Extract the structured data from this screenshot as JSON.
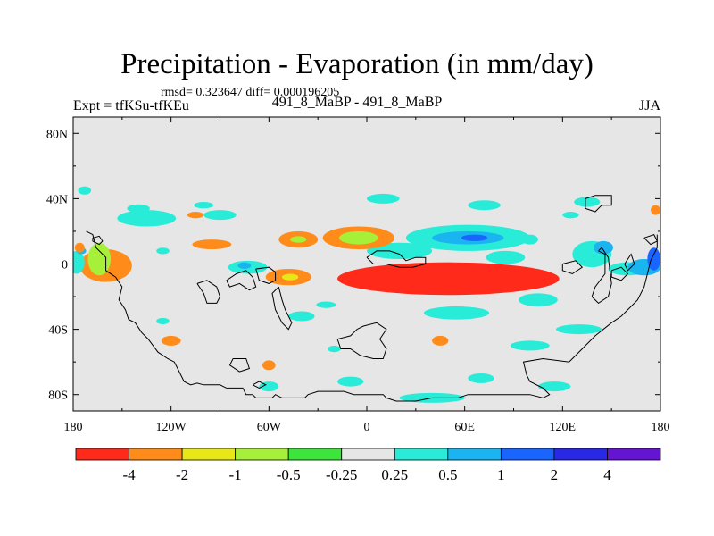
{
  "chart_data": {
    "type": "contour-map",
    "title": "Precipitation - Evaporation (in mm/day)",
    "stats_text": "rmsd= 0.323647  diff= 0.000196205",
    "left_string": "Expt = tfKSu-tfKEu",
    "center_string": "491_8_MaBP - 491_8_MaBP",
    "right_string": "JJA",
    "xlim": [
      -180,
      180
    ],
    "ylim": [
      -90,
      90
    ],
    "x_ticks": [
      {
        "value": -180,
        "label": "180"
      },
      {
        "value": -120,
        "label": "120W"
      },
      {
        "value": -60,
        "label": "60W"
      },
      {
        "value": 0,
        "label": "0"
      },
      {
        "value": 60,
        "label": "60E"
      },
      {
        "value": 120,
        "label": "120E"
      },
      {
        "value": 180,
        "label": "180"
      }
    ],
    "y_ticks": [
      {
        "value": 80,
        "label": "80N"
      },
      {
        "value": 40,
        "label": "40N"
      },
      {
        "value": 0,
        "label": "0"
      },
      {
        "value": -40,
        "label": "40S"
      },
      {
        "value": -80,
        "label": "80S"
      }
    ],
    "colorbar": {
      "colors": [
        "#ff2a1a",
        "#ff8c1a",
        "#e8e818",
        "#a6f03a",
        "#3ce43c",
        "#e6e6e6",
        "#28ebd8",
        "#1ab4f0",
        "#1a64ff",
        "#2828e6",
        "#6414d2"
      ],
      "labels": [
        "-4",
        "-2",
        "-1",
        "-0.5",
        "-0.25",
        "0.25",
        "0.5",
        "1",
        "2",
        "4"
      ]
    },
    "blobs": [
      {
        "lon": 44,
        "lat": -8,
        "rlon": 48,
        "rlat": 7,
        "level": 1
      },
      {
        "lon": 48,
        "lat": -8,
        "rlon": 32,
        "rlat": 5,
        "level": 2
      },
      {
        "lon": 52,
        "lat": -8,
        "rlon": 14,
        "rlat": 2.5,
        "level": 3
      },
      {
        "lon": 58,
        "lat": -8,
        "rlon": 10,
        "rlat": 1.5,
        "level": 4
      },
      {
        "lon": 50,
        "lat": -9,
        "rlon": 68,
        "rlat": 10,
        "level": 0
      },
      {
        "lon": 62,
        "lat": 16,
        "rlon": 38,
        "rlat": 8,
        "level": 6
      },
      {
        "lon": 62,
        "lat": 16,
        "rlon": 22,
        "rlat": 4,
        "level": 7
      },
      {
        "lon": 66,
        "lat": 16,
        "rlon": 8,
        "rlat": 2,
        "level": 8
      },
      {
        "lon": 20,
        "lat": 8,
        "rlon": 20,
        "rlat": 5,
        "level": 6
      },
      {
        "lon": -5,
        "lat": 16,
        "rlon": 22,
        "rlat": 7,
        "level": 1
      },
      {
        "lon": -5,
        "lat": 16,
        "rlon": 12,
        "rlat": 4,
        "level": 3
      },
      {
        "lon": -42,
        "lat": 15,
        "rlon": 12,
        "rlat": 5,
        "level": 1
      },
      {
        "lon": -42,
        "lat": 15,
        "rlon": 5,
        "rlat": 2,
        "level": 3
      },
      {
        "lon": -48,
        "lat": -8,
        "rlon": 14,
        "rlat": 5,
        "level": 1
      },
      {
        "lon": -47,
        "lat": -8,
        "rlon": 5,
        "rlat": 2,
        "level": 2
      },
      {
        "lon": -73,
        "lat": -2,
        "rlon": 12,
        "rlat": 4,
        "level": 6
      },
      {
        "lon": -75,
        "lat": -1,
        "rlon": 4,
        "rlat": 2,
        "level": 7
      },
      {
        "lon": -95,
        "lat": 12,
        "rlon": 12,
        "rlat": 3,
        "level": 1
      },
      {
        "lon": -135,
        "lat": 28,
        "rlon": 18,
        "rlat": 5,
        "level": 6
      },
      {
        "lon": -90,
        "lat": 30,
        "rlon": 10,
        "rlat": 3,
        "level": 6
      },
      {
        "lon": -160,
        "lat": -1,
        "rlon": 16,
        "rlat": 10,
        "level": 1
      },
      {
        "lon": -164,
        "lat": 3,
        "rlon": 7,
        "rlat": 10,
        "level": 3
      },
      {
        "lon": -178,
        "lat": 1,
        "rlon": 5,
        "rlat": 7,
        "level": 6
      },
      {
        "lon": -175,
        "lat": 8,
        "rlon": 3,
        "rlat": 2,
        "level": 7
      },
      {
        "lon": -173,
        "lat": 45,
        "rlon": 4,
        "rlat": 2.5,
        "level": 6
      },
      {
        "lon": -125,
        "lat": 8,
        "rlon": 4,
        "rlat": 2,
        "level": 6
      },
      {
        "lon": -105,
        "lat": 30,
        "rlon": 5,
        "rlat": 2,
        "level": 1
      },
      {
        "lon": 85,
        "lat": 4,
        "rlon": 12,
        "rlat": 4,
        "level": 6
      },
      {
        "lon": 138,
        "lat": 6,
        "rlon": 12,
        "rlat": 8,
        "level": 6
      },
      {
        "lon": 145,
        "lat": 10,
        "rlon": 6,
        "rlat": 4,
        "level": 7
      },
      {
        "lon": 160,
        "lat": -3,
        "rlon": 12,
        "rlat": 4,
        "level": 6
      },
      {
        "lon": 170,
        "lat": -2,
        "rlon": 10,
        "rlat": 5,
        "level": 7
      },
      {
        "lon": 176,
        "lat": 3,
        "rlon": 4,
        "rlat": 7,
        "level": 8
      },
      {
        "lon": 135,
        "lat": 38,
        "rlon": 8,
        "rlat": 3,
        "level": 6
      },
      {
        "lon": 125,
        "lat": 30,
        "rlon": 5,
        "rlat": 2,
        "level": 6
      },
      {
        "lon": 177,
        "lat": 33,
        "rlon": 3,
        "rlat": 3,
        "level": 1
      },
      {
        "lon": 100,
        "lat": 15,
        "rlon": 5,
        "rlat": 3,
        "level": 6
      },
      {
        "lon": 10,
        "lat": 40,
        "rlon": 10,
        "rlat": 3,
        "level": 6
      },
      {
        "lon": 72,
        "lat": 36,
        "rlon": 10,
        "rlat": 3,
        "level": 6
      },
      {
        "lon": -140,
        "lat": 34,
        "rlon": 7,
        "rlat": 2.5,
        "level": 6
      },
      {
        "lon": -100,
        "lat": 36,
        "rlon": 6,
        "rlat": 2,
        "level": 6
      },
      {
        "lon": 105,
        "lat": -22,
        "rlon": 12,
        "rlat": 4,
        "level": 6
      },
      {
        "lon": 130,
        "lat": -40,
        "rlon": 14,
        "rlat": 3,
        "level": 6
      },
      {
        "lon": 55,
        "lat": -30,
        "rlon": 20,
        "rlat": 4,
        "level": 6
      },
      {
        "lon": 45,
        "lat": -47,
        "rlon": 5,
        "rlat": 3,
        "level": 1
      },
      {
        "lon": 100,
        "lat": -50,
        "rlon": 12,
        "rlat": 3,
        "level": 6
      },
      {
        "lon": -40,
        "lat": -32,
        "rlon": 8,
        "rlat": 3,
        "level": 6
      },
      {
        "lon": -25,
        "lat": -25,
        "rlon": 6,
        "rlat": 2,
        "level": 6
      },
      {
        "lon": -60,
        "lat": -62,
        "rlon": 4,
        "rlat": 3,
        "level": 1
      },
      {
        "lon": -60,
        "lat": -75,
        "rlon": 6,
        "rlat": 3,
        "level": 6
      },
      {
        "lon": -120,
        "lat": -47,
        "rlon": 6,
        "rlat": 3,
        "level": 1
      },
      {
        "lon": -125,
        "lat": -35,
        "rlon": 4,
        "rlat": 2,
        "level": 6
      },
      {
        "lon": 40,
        "lat": -82,
        "rlon": 20,
        "rlat": 3,
        "level": 6
      },
      {
        "lon": 115,
        "lat": -75,
        "rlon": 10,
        "rlat": 3,
        "level": 6
      },
      {
        "lon": 70,
        "lat": -70,
        "rlon": 8,
        "rlat": 3,
        "level": 6
      },
      {
        "lon": -10,
        "lat": -72,
        "rlon": 8,
        "rlat": 3,
        "level": 6
      },
      {
        "lon": -20,
        "lat": -52,
        "rlon": 4,
        "rlat": 2,
        "level": 6
      },
      {
        "lon": -176,
        "lat": 10,
        "rlon": 3,
        "rlat": 3,
        "level": 1
      }
    ],
    "coastlines": [
      [
        [
          -172,
          20
        ],
        [
          -168,
          18
        ],
        [
          -166,
          10
        ],
        [
          -160,
          4
        ],
        [
          -160,
          -4
        ],
        [
          -154,
          -8
        ],
        [
          -150,
          -14
        ],
        [
          -152,
          -22
        ],
        [
          -148,
          -28
        ],
        [
          -146,
          -34
        ],
        [
          -142,
          -36
        ],
        [
          -138,
          -42
        ],
        [
          -134,
          -46
        ],
        [
          -128,
          -54
        ],
        [
          -122,
          -58
        ],
        [
          -118,
          -60
        ],
        [
          -116,
          -64
        ],
        [
          -112,
          -72
        ],
        [
          -108,
          -74
        ],
        [
          -104,
          -73
        ],
        [
          -100,
          -74
        ],
        [
          -94,
          -74
        ],
        [
          -90,
          -74
        ],
        [
          -86,
          -76
        ],
        [
          -76,
          -76
        ],
        [
          -74,
          -80
        ],
        [
          -70,
          -80
        ],
        [
          -68,
          -82
        ],
        [
          -58,
          -82
        ],
        [
          -56,
          -80
        ],
        [
          -52,
          -82
        ],
        [
          -38,
          -82
        ],
        [
          -36,
          -80
        ],
        [
          -30,
          -78
        ],
        [
          -14,
          -78
        ],
        [
          -8,
          -80
        ],
        [
          10,
          -80
        ],
        [
          12,
          -82
        ],
        [
          18,
          -84
        ],
        [
          30,
          -84
        ],
        [
          40,
          -82
        ],
        [
          56,
          -82
        ],
        [
          62,
          -80
        ],
        [
          100,
          -80
        ],
        [
          108,
          -82
        ],
        [
          112,
          -80
        ],
        [
          110,
          -78
        ],
        [
          108,
          -76
        ],
        [
          100,
          -72
        ],
        [
          98,
          -68
        ],
        [
          96,
          -60
        ],
        [
          108,
          -58
        ],
        [
          124,
          -60
        ],
        [
          128,
          -56
        ],
        [
          134,
          -50
        ],
        [
          140,
          -44
        ],
        [
          150,
          -36
        ],
        [
          156,
          -32
        ],
        [
          166,
          -22
        ],
        [
          170,
          -14
        ],
        [
          172,
          -6
        ],
        [
          174,
          2
        ],
        [
          178,
          10
        ],
        [
          178,
          18
        ]
      ],
      [
        [
          -168,
          16
        ],
        [
          -164,
          17
        ],
        [
          -162,
          14
        ],
        [
          -164,
          12
        ],
        [
          -168,
          14
        ],
        [
          -168,
          16
        ]
      ],
      [
        [
          -104,
          -12
        ],
        [
          -98,
          -10
        ],
        [
          -92,
          -14
        ],
        [
          -90,
          -20
        ],
        [
          -92,
          -24
        ],
        [
          -98,
          -24
        ],
        [
          -100,
          -18
        ],
        [
          -104,
          -12
        ]
      ],
      [
        [
          -86,
          -10
        ],
        [
          -80,
          -6
        ],
        [
          -74,
          -4
        ],
        [
          -70,
          -8
        ],
        [
          -68,
          -14
        ],
        [
          -72,
          -16
        ],
        [
          -78,
          -12
        ],
        [
          -84,
          -14
        ],
        [
          -86,
          -10
        ]
      ],
      [
        [
          -68,
          -3
        ],
        [
          -60,
          -2
        ],
        [
          -56,
          -5
        ],
        [
          -56,
          -10
        ],
        [
          -60,
          -12
        ],
        [
          -66,
          -10
        ],
        [
          -68,
          -3
        ]
      ],
      [
        [
          -54,
          -14
        ],
        [
          -52,
          -22
        ],
        [
          -50,
          -28
        ],
        [
          -46,
          -36
        ],
        [
          -48,
          -40
        ],
        [
          -52,
          -36
        ],
        [
          -56,
          -28
        ],
        [
          -58,
          -18
        ],
        [
          -54,
          -14
        ]
      ],
      [
        [
          0,
          4
        ],
        [
          6,
          8
        ],
        [
          14,
          8
        ],
        [
          20,
          6
        ],
        [
          24,
          2
        ],
        [
          30,
          4
        ],
        [
          36,
          4
        ],
        [
          36,
          0
        ],
        [
          28,
          -2
        ],
        [
          20,
          -2
        ],
        [
          12,
          0
        ],
        [
          4,
          0
        ],
        [
          0,
          4
        ]
      ],
      [
        [
          -2,
          -38
        ],
        [
          6,
          -36
        ],
        [
          12,
          -40
        ],
        [
          8,
          -46
        ],
        [
          12,
          -52
        ],
        [
          10,
          -58
        ],
        [
          4,
          -58
        ],
        [
          -4,
          -56
        ],
        [
          -10,
          -52
        ],
        [
          -16,
          -52
        ],
        [
          -18,
          -46
        ],
        [
          -10,
          -44
        ],
        [
          -6,
          -40
        ],
        [
          -2,
          -38
        ]
      ],
      [
        [
          142,
          8
        ],
        [
          146,
          6
        ],
        [
          146,
          -6
        ],
        [
          140,
          -14
        ],
        [
          138,
          -20
        ],
        [
          142,
          -24
        ],
        [
          148,
          -20
        ],
        [
          150,
          -12
        ],
        [
          148,
          4
        ],
        [
          144,
          10
        ],
        [
          142,
          8
        ]
      ],
      [
        [
          150,
          -4
        ],
        [
          156,
          -2
        ],
        [
          160,
          -6
        ],
        [
          156,
          -10
        ],
        [
          150,
          -8
        ],
        [
          150,
          -4
        ]
      ],
      [
        [
          158,
          0
        ],
        [
          162,
          6
        ],
        [
          164,
          0
        ],
        [
          160,
          -4
        ],
        [
          158,
          0
        ]
      ],
      [
        [
          134,
          40
        ],
        [
          140,
          42
        ],
        [
          150,
          42
        ],
        [
          150,
          36
        ],
        [
          144,
          36
        ],
        [
          140,
          32
        ],
        [
          134,
          34
        ],
        [
          134,
          40
        ]
      ],
      [
        [
          120,
          0
        ],
        [
          128,
          2
        ],
        [
          132,
          -2
        ],
        [
          126,
          -6
        ],
        [
          120,
          -4
        ],
        [
          120,
          0
        ]
      ],
      [
        [
          170,
          16
        ],
        [
          176,
          18
        ],
        [
          178,
          14
        ],
        [
          174,
          12
        ],
        [
          170,
          16
        ]
      ],
      [
        [
          -82,
          -58
        ],
        [
          -74,
          -58
        ],
        [
          -72,
          -64
        ],
        [
          -78,
          -66
        ],
        [
          -84,
          -62
        ],
        [
          -82,
          -58
        ]
      ],
      [
        [
          -70,
          -74
        ],
        [
          -66,
          -72
        ],
        [
          -62,
          -74
        ],
        [
          -66,
          -76
        ],
        [
          -70,
          -74
        ]
      ]
    ]
  }
}
